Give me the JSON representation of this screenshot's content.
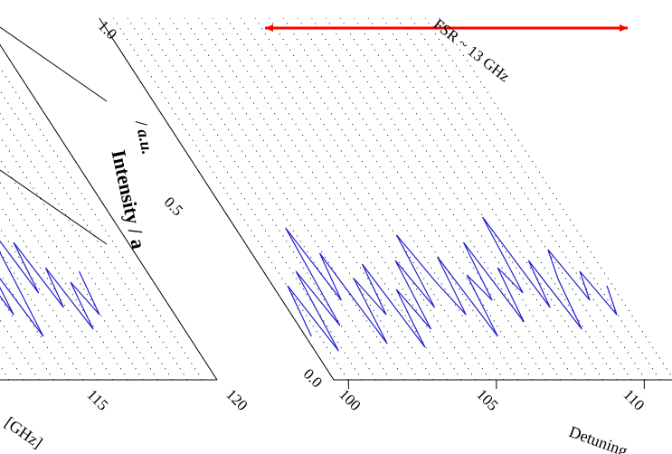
{
  "chart_data": {
    "type": "line",
    "view": "sheared 3D waterfall (partial)",
    "annotation": "FSR ~ 13 GHz",
    "ylabel_fragment": "Intensity / a",
    "ylabel_fragment_upper": "/ a.u.",
    "xlabel_fragments": [
      "Detuning",
      "[GHz]"
    ],
    "y_ticks": [
      "0.0",
      "0.5",
      "1.0"
    ],
    "y_ticks_left_panel": [
      "0.5"
    ],
    "x_ticks_right_panel": [
      "100",
      "105",
      "110"
    ],
    "x_ticks_left_panel": [
      "115",
      "120"
    ],
    "ylim": [
      0,
      1.0
    ],
    "xlim_right_panel": [
      99.5,
      111
    ],
    "xlim_left_panel": [
      112,
      120
    ],
    "fsr_arrow": {
      "from": 97.3,
      "to": 110.3,
      "y": 1.0
    },
    "grid": true,
    "colors": {
      "trace": "#1f1fcf",
      "arrow": "#ff0000",
      "grid": "#000000"
    },
    "series": [
      {
        "panel": "right",
        "x": [
          99.7,
          100.0,
          100.3,
          100.6,
          100.9,
          101.2,
          101.5,
          101.8,
          102.1,
          102.4,
          102.7,
          103.0,
          103.3,
          103.6,
          103.9,
          104.2,
          104.5,
          104.8,
          105.1,
          105.4,
          105.7,
          106.0,
          106.3,
          106.6,
          106.9,
          107.2,
          107.5,
          107.8,
          108.1,
          108.4,
          108.7,
          109.0,
          109.3,
          109.6,
          109.9,
          110.2,
          110.5,
          110.8
        ],
        "y": [
          0.12,
          0.26,
          0.08,
          0.3,
          0.15,
          0.42,
          0.22,
          0.35,
          0.1,
          0.28,
          0.18,
          0.32,
          0.09,
          0.25,
          0.14,
          0.33,
          0.2,
          0.4,
          0.27,
          0.18,
          0.34,
          0.12,
          0.29,
          0.22,
          0.38,
          0.16,
          0.31,
          0.24,
          0.45,
          0.2,
          0.33,
          0.14,
          0.28,
          0.36,
          0.22,
          0.3,
          0.18,
          0.26
        ]
      },
      {
        "panel": "left",
        "x": [
          112.0,
          112.3,
          112.6,
          112.9,
          113.2,
          113.5,
          113.8,
          114.1,
          114.4,
          114.7,
          115.0,
          115.3,
          115.6,
          115.9,
          116.2,
          116.5,
          116.8,
          117.1,
          117.4
        ],
        "y": [
          0.1,
          0.3,
          0.15,
          0.36,
          0.2,
          0.42,
          0.18,
          0.33,
          0.12,
          0.28,
          0.46,
          0.24,
          0.38,
          0.2,
          0.31,
          0.14,
          0.27,
          0.18,
          0.3
        ]
      }
    ]
  }
}
